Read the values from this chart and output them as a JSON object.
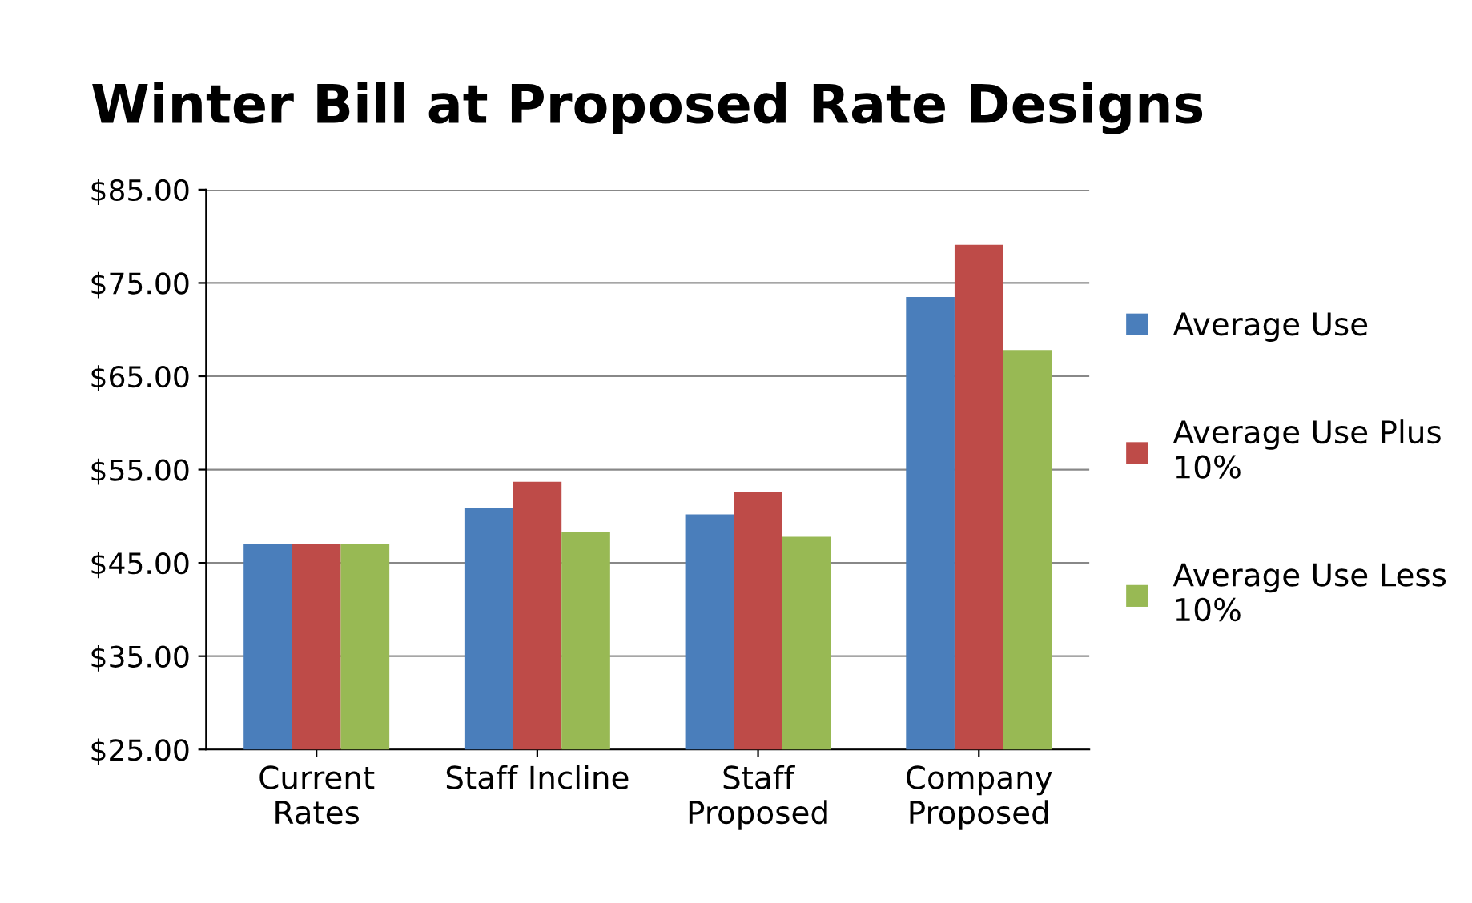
{
  "chart_data": {
    "type": "bar",
    "title": "Winter Bill at Proposed Rate Designs",
    "categories": [
      "Current\nRates",
      "Staff Incline",
      "Staff\nProposed",
      "Company\nProposed"
    ],
    "series": [
      {
        "name": "Average Use",
        "color": "#4a7ebb",
        "values": [
          47.0,
          50.9,
          50.2,
          73.5
        ]
      },
      {
        "name": "Average Use Plus\n10%",
        "color": "#be4b48",
        "values": [
          47.0,
          53.7,
          52.6,
          79.1
        ]
      },
      {
        "name": "Average Use Less\n10%",
        "color": "#98b954",
        "values": [
          47.0,
          48.3,
          47.8,
          67.8
        ]
      }
    ],
    "ylim": [
      25,
      85
    ],
    "yticks": [
      {
        "value": 25,
        "label": "$25.00"
      },
      {
        "value": 35,
        "label": "$35.00"
      },
      {
        "value": 45,
        "label": "$45.00"
      },
      {
        "value": 55,
        "label": "$55.00"
      },
      {
        "value": 65,
        "label": "$65.00"
      },
      {
        "value": 75,
        "label": "$75.00"
      },
      {
        "value": 85,
        "label": "$85.00"
      }
    ],
    "grid": "y",
    "legend": "right"
  }
}
